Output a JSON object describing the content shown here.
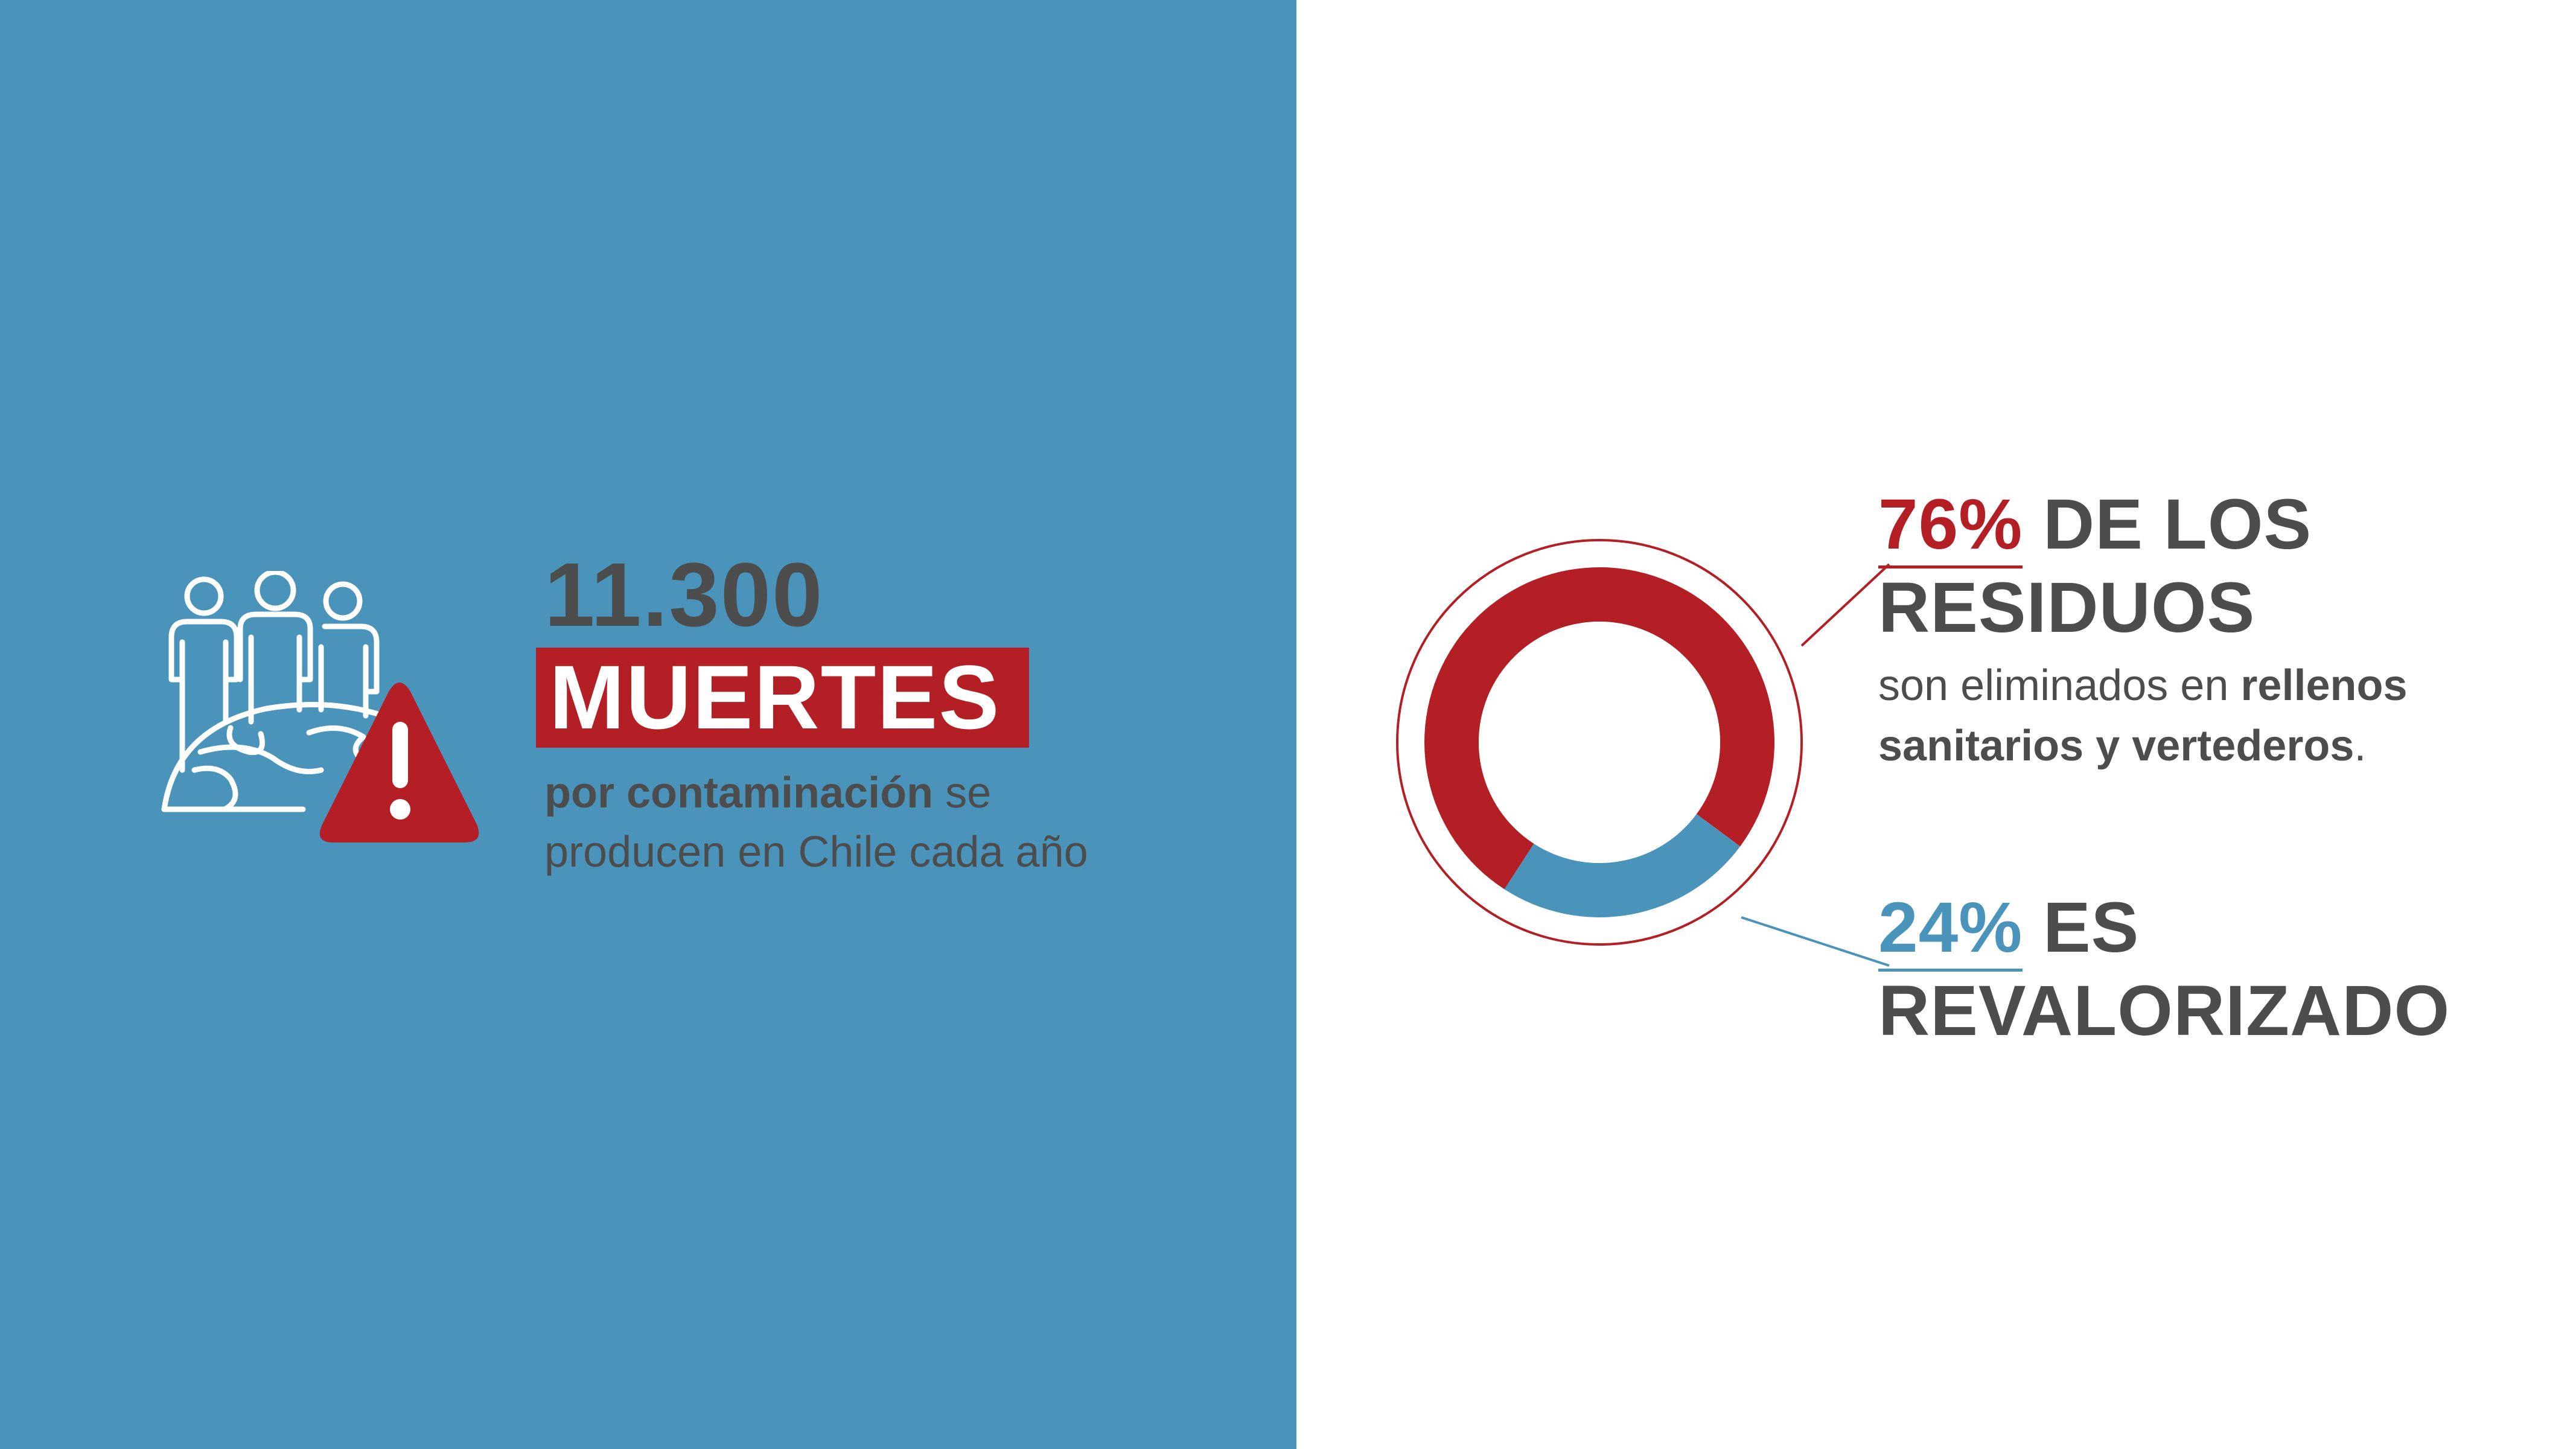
{
  "colors": {
    "panel_blue": "#4a94bb",
    "accent_red": "#b31f24",
    "text_gray": "#4d4d4d",
    "white": "#ffffff"
  },
  "left": {
    "icon": "people-globe-warning-icon",
    "number": "11.300",
    "highlight": "MUERTES",
    "desc_bold": "por contaminación",
    "desc_rest_1": " se",
    "desc_line_2": "producen en Chile cada año"
  },
  "right": {
    "red_stat": {
      "pct": "76%",
      "head_rest": " DE LOS",
      "head_line_2": "RESIDUOS",
      "desc_1": "son eliminados en ",
      "desc_bold_1": "rellenos",
      "desc_bold_2": "sanitarios y vertederos",
      "desc_end": "."
    },
    "blue_stat": {
      "pct": "24%",
      "head_rest": " ES",
      "head_line_2": "REVALORIZADO"
    }
  },
  "chart_data": {
    "type": "pie",
    "variant": "donut",
    "segments": [
      {
        "label": "76%",
        "value": 76,
        "color": "#b31f24"
      },
      {
        "label": "24%",
        "value": 24,
        "color": "#4a94bb"
      }
    ]
  }
}
